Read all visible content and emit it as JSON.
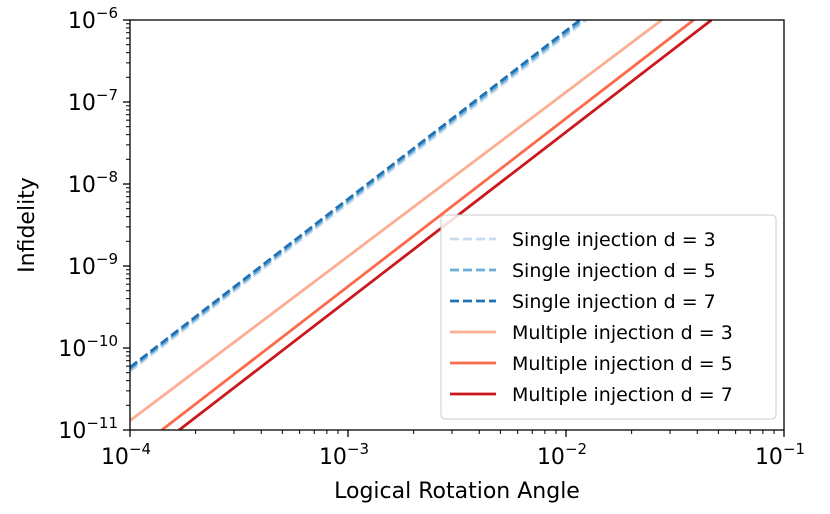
{
  "chart_data": {
    "type": "line",
    "title": "",
    "xlabel": "Logical Rotation Angle",
    "ylabel": "Infidelity",
    "xscale": "log",
    "yscale": "log",
    "xlim": [
      0.0001,
      0.1
    ],
    "ylim": [
      1e-11,
      1e-06
    ],
    "grid": false,
    "legend_position": "lower-right",
    "x_ticks": [
      {
        "base": "10",
        "exp": "−4",
        "value": 0.0001
      },
      {
        "base": "10",
        "exp": "−3",
        "value": 0.001
      },
      {
        "base": "10",
        "exp": "−2",
        "value": 0.01
      },
      {
        "base": "10",
        "exp": "−1",
        "value": 0.1
      }
    ],
    "y_ticks": [
      {
        "base": "10",
        "exp": "−11",
        "value": 1e-11
      },
      {
        "base": "10",
        "exp": "−10",
        "value": 1e-10
      },
      {
        "base": "10",
        "exp": "−9",
        "value": 1e-09
      },
      {
        "base": "10",
        "exp": "−8",
        "value": 1e-08
      },
      {
        "base": "10",
        "exp": "−7",
        "value": 1e-07
      },
      {
        "base": "10",
        "exp": "−6",
        "value": 1e-06
      }
    ],
    "series": [
      {
        "name": "Single injection d = 3",
        "style": "dashed",
        "color": "#c6dbef",
        "x": [
          0.0001,
          0.0124
        ],
        "y": [
          5.2e-11,
          1e-06
        ]
      },
      {
        "name": "Single injection d = 5",
        "style": "dashed",
        "color": "#6baed6",
        "x": [
          0.0001,
          0.012
        ],
        "y": [
          5.5e-11,
          1e-06
        ]
      },
      {
        "name": "Single injection d = 7",
        "style": "dashed",
        "color": "#2171b5",
        "x": [
          0.0001,
          0.0116
        ],
        "y": [
          5.8e-11,
          1e-06
        ]
      },
      {
        "name": "Multiple injection d = 3",
        "style": "solid",
        "color": "#fcae91",
        "x": [
          0.0001,
          0.0275
        ],
        "y": [
          1.3e-11,
          1e-06
        ]
      },
      {
        "name": "Multiple injection d = 5",
        "style": "solid",
        "color": "#fb6a4a",
        "x": [
          0.00014,
          0.0385
        ],
        "y": [
          1e-11,
          1e-06
        ]
      },
      {
        "name": "Multiple injection d = 7",
        "style": "solid",
        "color": "#cb181d",
        "x": [
          0.000168,
          0.0465
        ],
        "y": [
          1e-11,
          1e-06
        ]
      }
    ]
  }
}
